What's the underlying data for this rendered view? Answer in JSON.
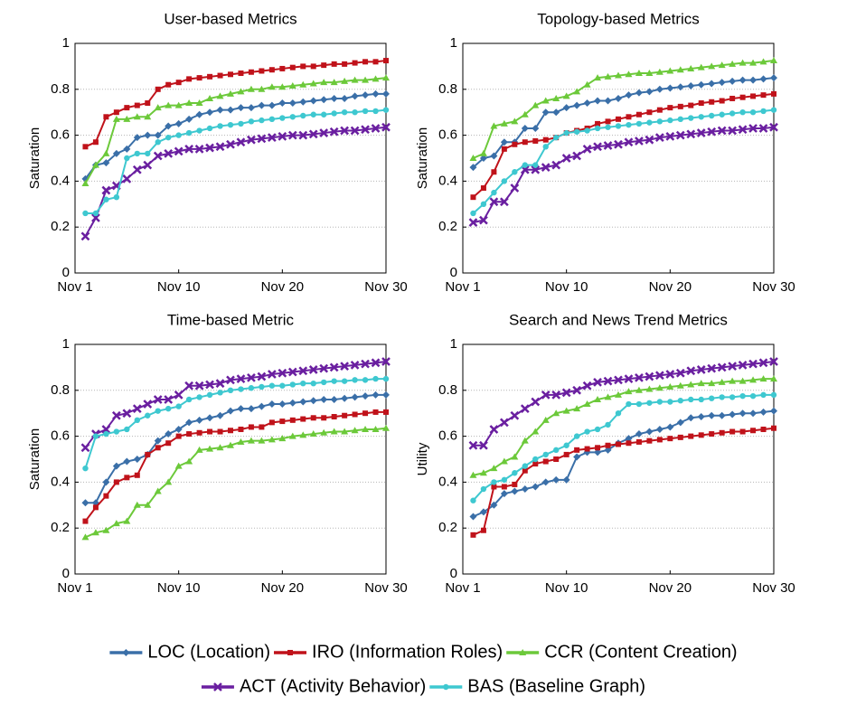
{
  "chart_data": [
    {
      "type": "line",
      "title": "User-based Metrics",
      "ylabel": "Saturation",
      "x": [
        1,
        2,
        3,
        4,
        5,
        6,
        7,
        8,
        9,
        10,
        11,
        12,
        13,
        14,
        15,
        16,
        17,
        18,
        19,
        20,
        21,
        22,
        23,
        24,
        25,
        26,
        27,
        28,
        29,
        30
      ],
      "xlim": [
        0,
        30
      ],
      "xticks": [
        {
          "value": 0,
          "label": "Nov 1"
        },
        {
          "value": 10,
          "label": "Nov 10"
        },
        {
          "value": 20,
          "label": "Nov 20"
        },
        {
          "value": 30,
          "label": "Nov 30"
        }
      ],
      "ylim": [
        0,
        1
      ],
      "yticks": [
        0,
        0.2,
        0.4,
        0.6,
        0.8,
        1
      ],
      "grid": true,
      "legend": "bottom",
      "series": [
        {
          "name": "LOC (Location)",
          "color": "#3a6fa8",
          "marker": "diamond",
          "values": [
            0.41,
            0.47,
            0.48,
            0.52,
            0.54,
            0.59,
            0.6,
            0.6,
            0.64,
            0.65,
            0.67,
            0.69,
            0.7,
            0.71,
            0.71,
            0.72,
            0.72,
            0.73,
            0.73,
            0.74,
            0.74,
            0.745,
            0.75,
            0.755,
            0.76,
            0.76,
            0.77,
            0.775,
            0.78,
            0.78
          ]
        },
        {
          "name": "IRO (Information Roles)",
          "color": "#c0121a",
          "marker": "square",
          "values": [
            0.55,
            0.57,
            0.68,
            0.7,
            0.72,
            0.73,
            0.74,
            0.8,
            0.82,
            0.83,
            0.845,
            0.85,
            0.855,
            0.86,
            0.865,
            0.87,
            0.875,
            0.88,
            0.885,
            0.89,
            0.895,
            0.9,
            0.9,
            0.905,
            0.91,
            0.91,
            0.915,
            0.92,
            0.92,
            0.925
          ]
        },
        {
          "name": "CCR (Content Creation)",
          "color": "#6cc93a",
          "marker": "triangle",
          "values": [
            0.39,
            0.47,
            0.52,
            0.67,
            0.67,
            0.68,
            0.68,
            0.72,
            0.73,
            0.73,
            0.74,
            0.74,
            0.76,
            0.77,
            0.78,
            0.79,
            0.8,
            0.8,
            0.81,
            0.81,
            0.815,
            0.82,
            0.825,
            0.83,
            0.83,
            0.835,
            0.84,
            0.84,
            0.845,
            0.85
          ]
        },
        {
          "name": "ACT (Activity Behavior)",
          "color": "#6a1fa0",
          "marker": "x",
          "values": [
            0.16,
            0.24,
            0.36,
            0.38,
            0.41,
            0.45,
            0.47,
            0.51,
            0.52,
            0.53,
            0.54,
            0.54,
            0.545,
            0.55,
            0.56,
            0.57,
            0.58,
            0.585,
            0.59,
            0.595,
            0.6,
            0.6,
            0.605,
            0.61,
            0.615,
            0.62,
            0.62,
            0.625,
            0.63,
            0.635
          ]
        },
        {
          "name": "BAS (Baseline Graph)",
          "color": "#3ec8d0",
          "marker": "circle",
          "values": [
            0.26,
            0.26,
            0.32,
            0.33,
            0.5,
            0.52,
            0.52,
            0.57,
            0.59,
            0.6,
            0.61,
            0.62,
            0.63,
            0.64,
            0.645,
            0.65,
            0.66,
            0.665,
            0.67,
            0.675,
            0.68,
            0.685,
            0.69,
            0.69,
            0.695,
            0.7,
            0.7,
            0.705,
            0.705,
            0.71
          ]
        }
      ]
    },
    {
      "type": "line",
      "title": "Topology-based Metrics",
      "ylabel": "Saturation",
      "x": [
        1,
        2,
        3,
        4,
        5,
        6,
        7,
        8,
        9,
        10,
        11,
        12,
        13,
        14,
        15,
        16,
        17,
        18,
        19,
        20,
        21,
        22,
        23,
        24,
        25,
        26,
        27,
        28,
        29,
        30
      ],
      "xlim": [
        0,
        30
      ],
      "xticks": [
        {
          "value": 0,
          "label": "Nov 1"
        },
        {
          "value": 10,
          "label": "Nov 10"
        },
        {
          "value": 20,
          "label": "Nov 20"
        },
        {
          "value": 30,
          "label": "Nov 30"
        }
      ],
      "ylim": [
        0,
        1
      ],
      "yticks": [
        0,
        0.2,
        0.4,
        0.6,
        0.8,
        1
      ],
      "grid": true,
      "series": [
        {
          "name": "LOC (Location)",
          "color": "#3a6fa8",
          "marker": "diamond",
          "values": [
            0.46,
            0.5,
            0.51,
            0.57,
            0.57,
            0.63,
            0.63,
            0.7,
            0.7,
            0.72,
            0.73,
            0.74,
            0.75,
            0.75,
            0.76,
            0.775,
            0.785,
            0.79,
            0.8,
            0.805,
            0.81,
            0.815,
            0.82,
            0.825,
            0.83,
            0.835,
            0.84,
            0.84,
            0.845,
            0.85
          ]
        },
        {
          "name": "IRO (Information Roles)",
          "color": "#c0121a",
          "marker": "square",
          "values": [
            0.33,
            0.37,
            0.44,
            0.54,
            0.56,
            0.57,
            0.575,
            0.58,
            0.59,
            0.61,
            0.62,
            0.63,
            0.65,
            0.66,
            0.67,
            0.68,
            0.69,
            0.7,
            0.71,
            0.72,
            0.725,
            0.73,
            0.74,
            0.745,
            0.75,
            0.76,
            0.765,
            0.77,
            0.775,
            0.78
          ]
        },
        {
          "name": "CCR (Content Creation)",
          "color": "#6cc93a",
          "marker": "triangle",
          "values": [
            0.5,
            0.52,
            0.64,
            0.65,
            0.66,
            0.69,
            0.73,
            0.75,
            0.76,
            0.77,
            0.79,
            0.82,
            0.85,
            0.855,
            0.86,
            0.865,
            0.87,
            0.87,
            0.875,
            0.88,
            0.885,
            0.89,
            0.895,
            0.9,
            0.905,
            0.91,
            0.915,
            0.915,
            0.92,
            0.925
          ]
        },
        {
          "name": "ACT (Activity Behavior)",
          "color": "#6a1fa0",
          "marker": "x",
          "values": [
            0.22,
            0.23,
            0.31,
            0.31,
            0.37,
            0.45,
            0.45,
            0.46,
            0.47,
            0.5,
            0.51,
            0.54,
            0.55,
            0.555,
            0.56,
            0.57,
            0.575,
            0.58,
            0.59,
            0.595,
            0.6,
            0.605,
            0.61,
            0.615,
            0.62,
            0.62,
            0.625,
            0.63,
            0.63,
            0.635
          ]
        },
        {
          "name": "BAS (Baseline Graph)",
          "color": "#3ec8d0",
          "marker": "circle",
          "values": [
            0.26,
            0.3,
            0.35,
            0.4,
            0.44,
            0.47,
            0.47,
            0.55,
            0.59,
            0.61,
            0.615,
            0.62,
            0.63,
            0.635,
            0.64,
            0.645,
            0.65,
            0.655,
            0.66,
            0.665,
            0.67,
            0.675,
            0.68,
            0.685,
            0.69,
            0.695,
            0.7,
            0.7,
            0.705,
            0.71
          ]
        }
      ]
    },
    {
      "type": "line",
      "title": "Time-based Metric",
      "ylabel": "Saturation",
      "x": [
        1,
        2,
        3,
        4,
        5,
        6,
        7,
        8,
        9,
        10,
        11,
        12,
        13,
        14,
        15,
        16,
        17,
        18,
        19,
        20,
        21,
        22,
        23,
        24,
        25,
        26,
        27,
        28,
        29,
        30
      ],
      "xlim": [
        0,
        30
      ],
      "xticks": [
        {
          "value": 0,
          "label": "Nov 1"
        },
        {
          "value": 10,
          "label": "Nov 10"
        },
        {
          "value": 20,
          "label": "Nov 20"
        },
        {
          "value": 30,
          "label": "Nov 30"
        }
      ],
      "ylim": [
        0,
        1
      ],
      "yticks": [
        0,
        0.2,
        0.4,
        0.6,
        0.8,
        1
      ],
      "grid": true,
      "series": [
        {
          "name": "LOC (Location)",
          "color": "#3a6fa8",
          "marker": "diamond",
          "values": [
            0.31,
            0.31,
            0.4,
            0.47,
            0.49,
            0.5,
            0.52,
            0.58,
            0.61,
            0.63,
            0.66,
            0.67,
            0.68,
            0.69,
            0.71,
            0.72,
            0.72,
            0.73,
            0.74,
            0.74,
            0.745,
            0.75,
            0.755,
            0.76,
            0.76,
            0.765,
            0.77,
            0.775,
            0.78,
            0.78
          ]
        },
        {
          "name": "IRO (Information Roles)",
          "color": "#c0121a",
          "marker": "square",
          "values": [
            0.23,
            0.29,
            0.34,
            0.4,
            0.42,
            0.43,
            0.52,
            0.55,
            0.57,
            0.6,
            0.61,
            0.615,
            0.62,
            0.62,
            0.625,
            0.63,
            0.64,
            0.64,
            0.66,
            0.665,
            0.67,
            0.675,
            0.68,
            0.68,
            0.685,
            0.69,
            0.695,
            0.7,
            0.705,
            0.705
          ]
        },
        {
          "name": "CCR (Content Creation)",
          "color": "#6cc93a",
          "marker": "triangle",
          "values": [
            0.16,
            0.18,
            0.19,
            0.22,
            0.23,
            0.3,
            0.3,
            0.36,
            0.4,
            0.47,
            0.49,
            0.54,
            0.545,
            0.55,
            0.56,
            0.575,
            0.58,
            0.58,
            0.585,
            0.59,
            0.6,
            0.605,
            0.61,
            0.615,
            0.62,
            0.62,
            0.625,
            0.63,
            0.63,
            0.635
          ]
        },
        {
          "name": "ACT (Activity Behavior)",
          "color": "#6a1fa0",
          "marker": "x",
          "values": [
            0.55,
            0.61,
            0.63,
            0.69,
            0.7,
            0.72,
            0.74,
            0.76,
            0.76,
            0.78,
            0.82,
            0.82,
            0.825,
            0.83,
            0.845,
            0.85,
            0.855,
            0.86,
            0.87,
            0.875,
            0.88,
            0.885,
            0.89,
            0.895,
            0.9,
            0.905,
            0.91,
            0.915,
            0.92,
            0.925
          ]
        },
        {
          "name": "BAS (Baseline Graph)",
          "color": "#3ec8d0",
          "marker": "circle",
          "values": [
            0.46,
            0.6,
            0.61,
            0.62,
            0.63,
            0.67,
            0.69,
            0.71,
            0.72,
            0.73,
            0.76,
            0.77,
            0.78,
            0.79,
            0.8,
            0.805,
            0.81,
            0.815,
            0.82,
            0.82,
            0.825,
            0.83,
            0.83,
            0.835,
            0.84,
            0.84,
            0.845,
            0.845,
            0.85,
            0.85
          ]
        }
      ]
    },
    {
      "type": "line",
      "title": "Search and News Trend Metrics",
      "ylabel": "Utility",
      "x": [
        1,
        2,
        3,
        4,
        5,
        6,
        7,
        8,
        9,
        10,
        11,
        12,
        13,
        14,
        15,
        16,
        17,
        18,
        19,
        20,
        21,
        22,
        23,
        24,
        25,
        26,
        27,
        28,
        29,
        30
      ],
      "xlim": [
        0,
        30
      ],
      "xticks": [
        {
          "value": 0,
          "label": "Nov 1"
        },
        {
          "value": 10,
          "label": "Nov 10"
        },
        {
          "value": 20,
          "label": "Nov 20"
        },
        {
          "value": 30,
          "label": "Nov 30"
        }
      ],
      "ylim": [
        0,
        1
      ],
      "yticks": [
        0,
        0.2,
        0.4,
        0.6,
        0.8,
        1
      ],
      "grid": true,
      "series": [
        {
          "name": "LOC (Location)",
          "color": "#3a6fa8",
          "marker": "diamond",
          "values": [
            0.25,
            0.27,
            0.3,
            0.35,
            0.36,
            0.37,
            0.38,
            0.4,
            0.41,
            0.41,
            0.51,
            0.53,
            0.53,
            0.54,
            0.57,
            0.59,
            0.61,
            0.62,
            0.63,
            0.64,
            0.66,
            0.68,
            0.685,
            0.69,
            0.69,
            0.695,
            0.7,
            0.7,
            0.705,
            0.71
          ]
        },
        {
          "name": "IRO (Information Roles)",
          "color": "#c0121a",
          "marker": "square",
          "values": [
            0.17,
            0.19,
            0.38,
            0.38,
            0.39,
            0.45,
            0.48,
            0.49,
            0.5,
            0.52,
            0.54,
            0.545,
            0.55,
            0.56,
            0.565,
            0.57,
            0.575,
            0.58,
            0.585,
            0.59,
            0.595,
            0.6,
            0.605,
            0.61,
            0.615,
            0.62,
            0.62,
            0.625,
            0.63,
            0.635
          ]
        },
        {
          "name": "CCR (Content Creation)",
          "color": "#6cc93a",
          "marker": "triangle",
          "values": [
            0.43,
            0.44,
            0.46,
            0.49,
            0.51,
            0.58,
            0.62,
            0.67,
            0.7,
            0.71,
            0.72,
            0.74,
            0.76,
            0.77,
            0.78,
            0.795,
            0.8,
            0.805,
            0.81,
            0.815,
            0.82,
            0.825,
            0.83,
            0.83,
            0.835,
            0.84,
            0.84,
            0.845,
            0.85,
            0.85
          ]
        },
        {
          "name": "ACT (Activity Behavior)",
          "color": "#6a1fa0",
          "marker": "x",
          "values": [
            0.56,
            0.56,
            0.63,
            0.66,
            0.69,
            0.72,
            0.75,
            0.78,
            0.78,
            0.79,
            0.8,
            0.82,
            0.835,
            0.84,
            0.845,
            0.85,
            0.855,
            0.86,
            0.865,
            0.87,
            0.875,
            0.885,
            0.89,
            0.895,
            0.9,
            0.905,
            0.91,
            0.915,
            0.92,
            0.925
          ]
        },
        {
          "name": "BAS (Baseline Graph)",
          "color": "#3ec8d0",
          "marker": "circle",
          "values": [
            0.32,
            0.37,
            0.4,
            0.41,
            0.44,
            0.47,
            0.5,
            0.52,
            0.54,
            0.56,
            0.6,
            0.62,
            0.63,
            0.65,
            0.7,
            0.74,
            0.74,
            0.745,
            0.75,
            0.75,
            0.755,
            0.76,
            0.76,
            0.765,
            0.77,
            0.77,
            0.775,
            0.775,
            0.78,
            0.78
          ]
        }
      ]
    }
  ]
}
